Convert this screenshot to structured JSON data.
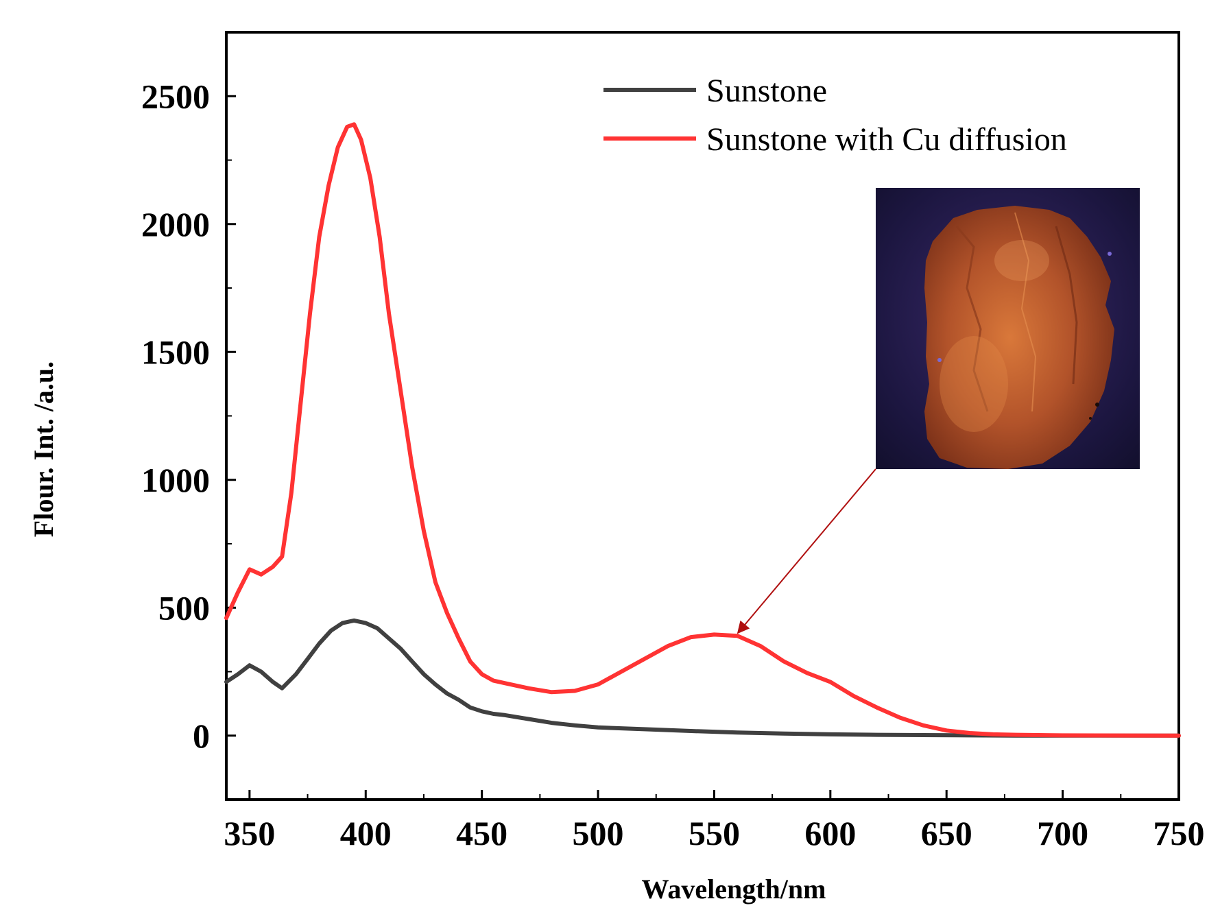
{
  "chart_data": {
    "type": "line",
    "xlabel": "Wavelength/nm",
    "ylabel": "Flour. Int. /a.u.",
    "xlim": [
      340,
      750
    ],
    "ylim": [
      -250,
      2750
    ],
    "x_ticks": [
      350,
      400,
      450,
      500,
      550,
      600,
      650,
      700,
      750
    ],
    "y_ticks": [
      0,
      500,
      1000,
      1500,
      2000,
      2500
    ],
    "legend_position": "top-right",
    "grid": false,
    "series": [
      {
        "name": "Sunstone",
        "color": "#404040",
        "x": [
          340,
          345,
          350,
          355,
          360,
          364,
          370,
          375,
          380,
          385,
          390,
          395,
          400,
          405,
          410,
          415,
          420,
          425,
          430,
          435,
          440,
          445,
          450,
          455,
          460,
          470,
          480,
          490,
          500,
          520,
          540,
          560,
          580,
          600,
          620,
          640,
          660,
          680,
          700,
          750
        ],
        "y": [
          210,
          240,
          275,
          250,
          210,
          185,
          240,
          300,
          360,
          410,
          440,
          450,
          440,
          420,
          380,
          340,
          290,
          240,
          200,
          165,
          140,
          110,
          95,
          85,
          80,
          65,
          50,
          40,
          32,
          25,
          18,
          12,
          8,
          5,
          3,
          2,
          1,
          0,
          0,
          0
        ]
      },
      {
        "name": "Sunstone with Cu diffusion",
        "color": "#ff3333",
        "x": [
          340,
          345,
          350,
          355,
          360,
          364,
          368,
          372,
          376,
          380,
          384,
          388,
          392,
          395,
          398,
          402,
          406,
          410,
          415,
          420,
          425,
          430,
          435,
          440,
          445,
          450,
          455,
          460,
          470,
          480,
          490,
          500,
          510,
          520,
          530,
          540,
          550,
          560,
          570,
          580,
          590,
          600,
          610,
          620,
          630,
          640,
          650,
          660,
          670,
          680,
          700,
          750
        ],
        "y": [
          460,
          560,
          650,
          630,
          660,
          700,
          950,
          1300,
          1650,
          1950,
          2150,
          2300,
          2380,
          2390,
          2330,
          2180,
          1950,
          1650,
          1350,
          1050,
          800,
          600,
          480,
          380,
          290,
          240,
          215,
          205,
          185,
          170,
          175,
          200,
          250,
          300,
          350,
          385,
          395,
          390,
          350,
          290,
          245,
          210,
          155,
          110,
          70,
          40,
          20,
          10,
          5,
          3,
          1,
          0
        ]
      }
    ],
    "annotations": [
      {
        "type": "arrow",
        "from_x": 618,
        "from_y": 1045,
        "to_x": 560,
        "to_y": 395,
        "color": "#b01010"
      },
      {
        "type": "inset-photo",
        "subject": "orange sunstone crystal glowing under UV light on dark blue background"
      }
    ]
  }
}
